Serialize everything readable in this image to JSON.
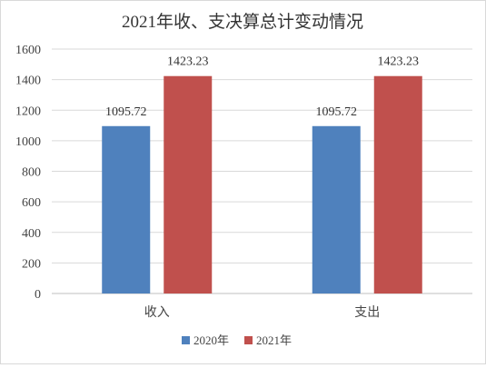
{
  "chart_data": {
    "type": "bar",
    "title": "2021年收、支决算总计变动情况",
    "categories": [
      "收入",
      "支出"
    ],
    "series": [
      {
        "name": "2020年",
        "values": [
          1095.72,
          1095.72
        ],
        "color": "#4f81bd"
      },
      {
        "name": "2021年",
        "values": [
          1423.23,
          1423.23
        ],
        "color": "#c0504d"
      }
    ],
    "ylim": [
      0,
      1600
    ],
    "yticks": [
      0,
      200,
      400,
      600,
      800,
      1000,
      1200,
      1400,
      1600
    ],
    "value_labels": [
      [
        "1095.72",
        "1095.72"
      ],
      [
        "1423.23",
        "1423.23"
      ]
    ],
    "xlabel": "",
    "ylabel": "",
    "grid": true,
    "legend_position": "bottom"
  }
}
